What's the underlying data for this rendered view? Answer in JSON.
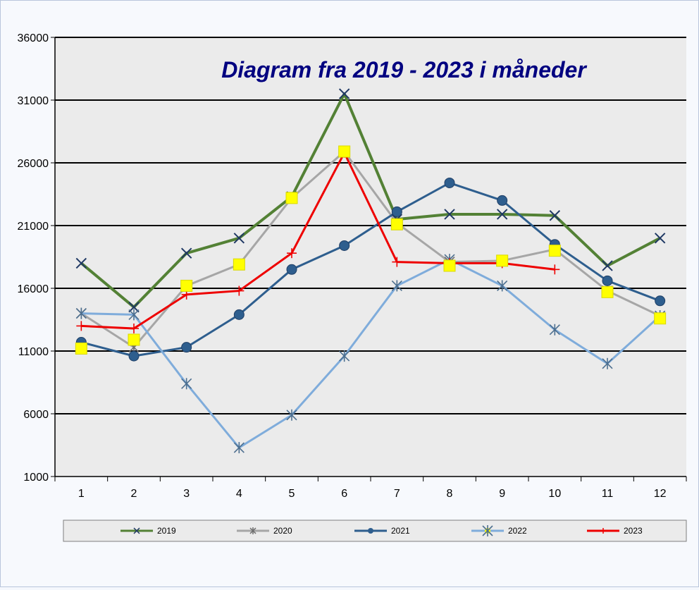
{
  "chart_data": {
    "type": "line",
    "title": "Diagram fra 2019 - 2023 i måneder",
    "xlabel": "",
    "ylabel": "",
    "categories": [
      "1",
      "2",
      "3",
      "4",
      "5",
      "6",
      "7",
      "8",
      "9",
      "10",
      "11",
      "12"
    ],
    "y_ticks": [
      "1000",
      "6000",
      "11000",
      "16000",
      "21000",
      "26000",
      "31000",
      "36000"
    ],
    "ylim": [
      1000,
      36000
    ],
    "grid": "horizontal",
    "legend_position": "bottom",
    "plot_background": "#ebebeb",
    "series": [
      {
        "name": "2019",
        "color": "#538135",
        "marker": "x",
        "marker_color": "#1f3864",
        "values": [
          18000,
          14500,
          18800,
          20000,
          23300,
          31500,
          21500,
          21900,
          21900,
          21800,
          17800,
          20000
        ]
      },
      {
        "name": "2020",
        "color": "#a6a6a6",
        "marker": "asterisk",
        "marker_color": "#6d6d6d",
        "values": [
          14000,
          11300,
          16200,
          17900,
          23200,
          26900,
          21200,
          18100,
          18200,
          19100,
          15800,
          13800
        ]
      },
      {
        "name": "2021",
        "color": "#2e5e8e",
        "marker": "circle",
        "marker_color": "#2e5e8e",
        "values": [
          11700,
          10600,
          11300,
          13900,
          17500,
          19400,
          22100,
          24400,
          23000,
          19500,
          16600,
          15000
        ]
      },
      {
        "name": "2022",
        "color": "#7facdb",
        "marker": "asterisk",
        "marker_color": "#4d6f8f",
        "values": [
          14000,
          13900,
          8400,
          3300,
          5900,
          10600,
          16200,
          18300,
          16200,
          12700,
          10000,
          13800
        ]
      },
      {
        "name": "2023",
        "color": "#ee0000",
        "marker": "plus",
        "marker_color": "#ee0000",
        "values": [
          13000,
          12800,
          15500,
          15800,
          18800,
          26800,
          18100,
          18000,
          18000,
          17500,
          null,
          null
        ]
      }
    ],
    "highlight_markers": {
      "color": "#ffff00",
      "months": [
        "1",
        "2",
        "3",
        "4",
        "5",
        "6",
        "7",
        "8",
        "9",
        "10",
        "11",
        "12"
      ],
      "values": [
        11200,
        11900,
        16200,
        17900,
        23200,
        26900,
        21100,
        17800,
        18200,
        19000,
        15700,
        13600
      ]
    }
  }
}
